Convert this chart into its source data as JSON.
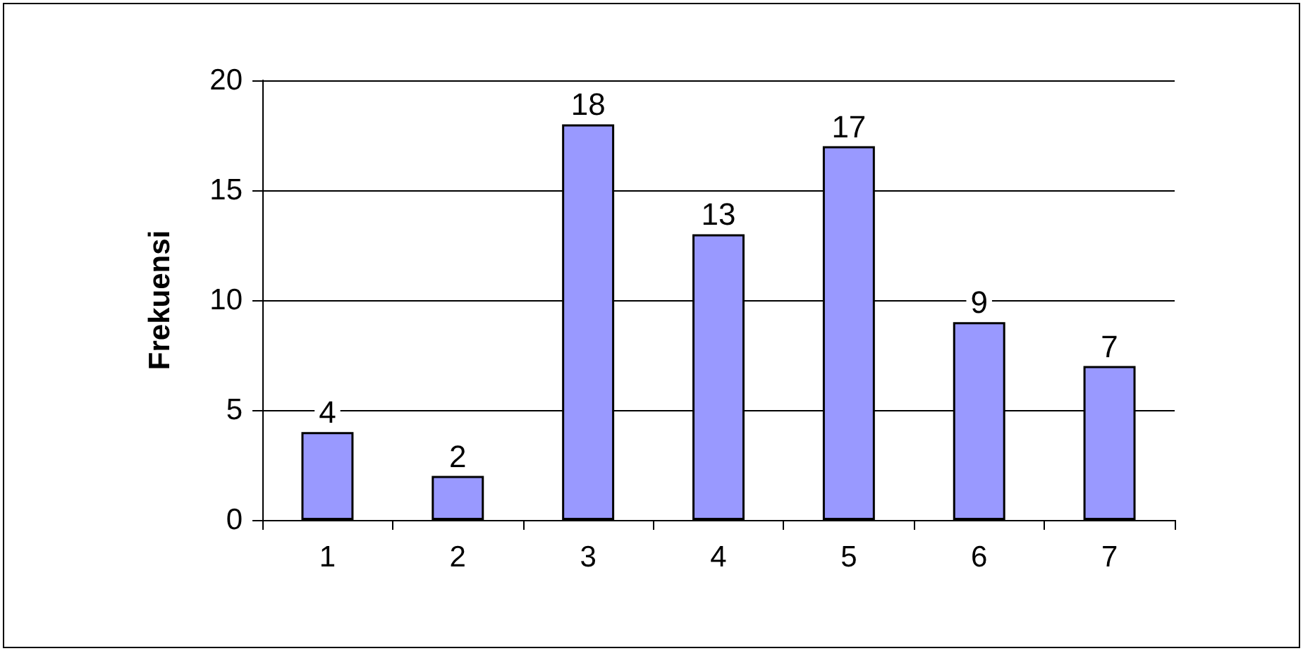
{
  "chart_data": {
    "type": "bar",
    "ylabel": "Frekuensi",
    "categories": [
      "1",
      "2",
      "3",
      "4",
      "5",
      "6",
      "7"
    ],
    "values": [
      4,
      2,
      18,
      13,
      17,
      9,
      7
    ],
    "color": "#9999ff",
    "ylim": [
      0,
      20
    ],
    "yticks": [
      0,
      5,
      10,
      15,
      20
    ],
    "grid": "y",
    "data_labels": true
  }
}
